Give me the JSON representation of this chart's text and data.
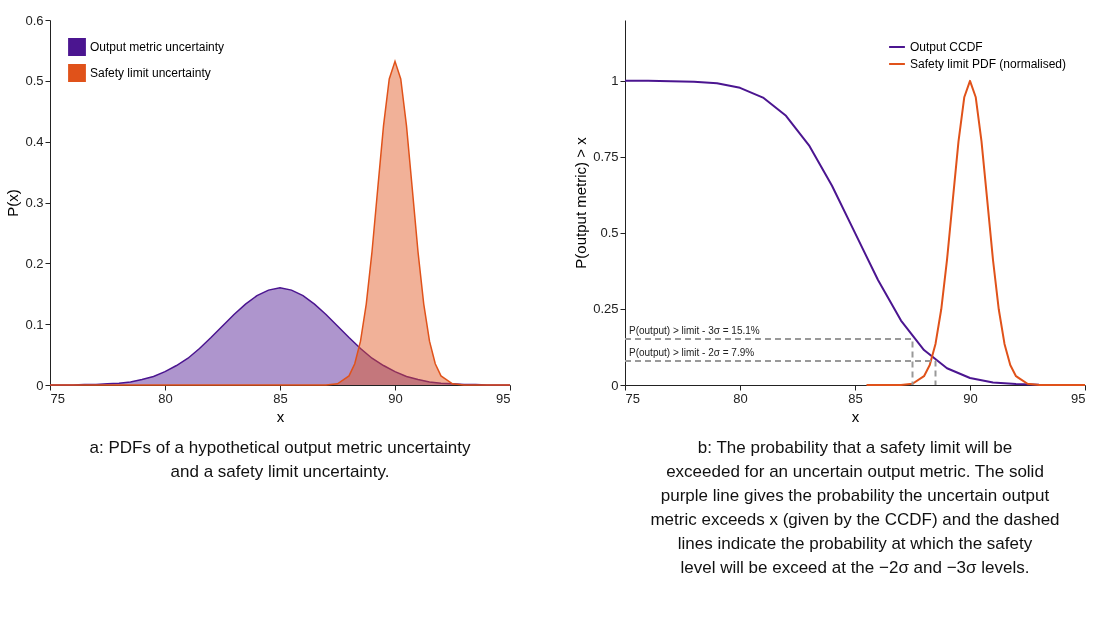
{
  "chart_data": [
    {
      "type": "area",
      "xlabel": "x",
      "ylabel": "P(x)",
      "xlim": [
        75,
        95
      ],
      "xticks": [
        75,
        80,
        85,
        90,
        95
      ],
      "ylim": [
        0,
        0.6
      ],
      "yticks": [
        0,
        0.1,
        0.2,
        0.3,
        0.4,
        0.5,
        0.6
      ],
      "legend": "top left",
      "series": [
        {
          "name": "Output metric uncertainty",
          "color": "#4b1590",
          "x": [
            75,
            75.5,
            76,
            76.5,
            77,
            77.5,
            78,
            78.5,
            79,
            79.5,
            80,
            80.5,
            81,
            81.5,
            82,
            82.5,
            83,
            83.5,
            84,
            84.5,
            85,
            85.5,
            86,
            86.5,
            87,
            87.5,
            88,
            88.5,
            89,
            89.5,
            90,
            90.5,
            91,
            91.5,
            92,
            92.5,
            93,
            93.5,
            94,
            94.5,
            95
          ],
          "values": [
            0,
            0,
            0,
            0.001,
            0.001,
            0.002,
            0.003,
            0.005,
            0.009,
            0.014,
            0.022,
            0.032,
            0.044,
            0.06,
            0.078,
            0.097,
            0.116,
            0.133,
            0.147,
            0.156,
            0.16,
            0.156,
            0.147,
            0.133,
            0.116,
            0.097,
            0.078,
            0.06,
            0.044,
            0.032,
            0.022,
            0.014,
            0.009,
            0.005,
            0.003,
            0.002,
            0.001,
            0.001,
            0,
            0,
            0
          ]
        },
        {
          "name": "Safety limit uncertainty",
          "color": "#e0521a",
          "x": [
            75,
            86,
            87,
            87.5,
            88,
            88.25,
            88.5,
            88.75,
            89,
            89.25,
            89.5,
            89.75,
            90,
            90.25,
            90.5,
            90.75,
            91,
            91.25,
            91.5,
            91.75,
            92,
            92.5,
            93,
            94,
            95
          ],
          "values": [
            0,
            0,
            0,
            0.002,
            0.015,
            0.035,
            0.072,
            0.133,
            0.219,
            0.323,
            0.426,
            0.503,
            0.532,
            0.503,
            0.426,
            0.323,
            0.219,
            0.133,
            0.072,
            0.035,
            0.015,
            0.002,
            0,
            0,
            0
          ]
        }
      ],
      "annotations": [
        "a: PDFs of a hypothetical output metric uncertainty and a safety limit uncertainty."
      ]
    },
    {
      "type": "line",
      "xlabel": "x",
      "ylabel": "P(output metric) > x",
      "xlim": [
        75,
        95
      ],
      "xticks": [
        75,
        80,
        85,
        90,
        95
      ],
      "ylim": [
        0,
        1.2
      ],
      "yticks": [
        0,
        0.25,
        0.5,
        0.75,
        1
      ],
      "legend": "top right",
      "series": [
        {
          "name": "Output CCDF",
          "color": "#4b1590",
          "x": [
            75,
            76,
            77,
            78,
            79,
            80,
            81,
            82,
            83,
            84,
            85,
            86,
            87,
            88,
            89,
            90,
            91,
            92,
            93
          ],
          "values": [
            1,
            1,
            0.999,
            0.997,
            0.992,
            0.977,
            0.945,
            0.885,
            0.788,
            0.655,
            0.5,
            0.345,
            0.212,
            0.115,
            0.055,
            0.023,
            0.008,
            0.003,
            0.001
          ]
        },
        {
          "name": "Safety limit PDF (normalised)",
          "color": "#e0521a",
          "x": [
            85.5,
            86,
            87,
            87.5,
            88,
            88.25,
            88.5,
            88.75,
            89,
            89.25,
            89.5,
            89.75,
            90,
            90.25,
            90.5,
            90.75,
            91,
            91.25,
            91.5,
            91.75,
            92,
            92.5,
            93,
            94,
            95
          ],
          "values": [
            0,
            0,
            0,
            0.004,
            0.029,
            0.066,
            0.135,
            0.249,
            0.411,
            0.607,
            0.801,
            0.946,
            1,
            0.946,
            0.801,
            0.607,
            0.411,
            0.249,
            0.135,
            0.066,
            0.029,
            0.004,
            0,
            0,
            0
          ]
        },
        {
          "color": "#999999",
          "line_style": "dashed",
          "x": [
            75,
            87.5,
            87.5
          ],
          "values": [
            0.151,
            0.151,
            0
          ]
        },
        {
          "color": "#999999",
          "line_style": "dashed",
          "x": [
            75,
            88.5,
            88.5
          ],
          "values": [
            0.079,
            0.079,
            0
          ]
        }
      ],
      "annotations": [
        {
          "text": "P(output) > limit - 3σ = 15.1%",
          "x": 75,
          "y": 0.151
        },
        {
          "text": "P(output) > limit - 2σ = 7.9%",
          "x": 75,
          "y": 0.079
        },
        "b: The probability that a safety limit will be exceeded for an uncertain output metric. The solid purple line gives the probability the uncertain output metric exceeds x (given by the CCDF) and the dashed lines indicate the probability at which the safety level will be exceed at the −2σ and −3σ levels."
      ]
    }
  ]
}
